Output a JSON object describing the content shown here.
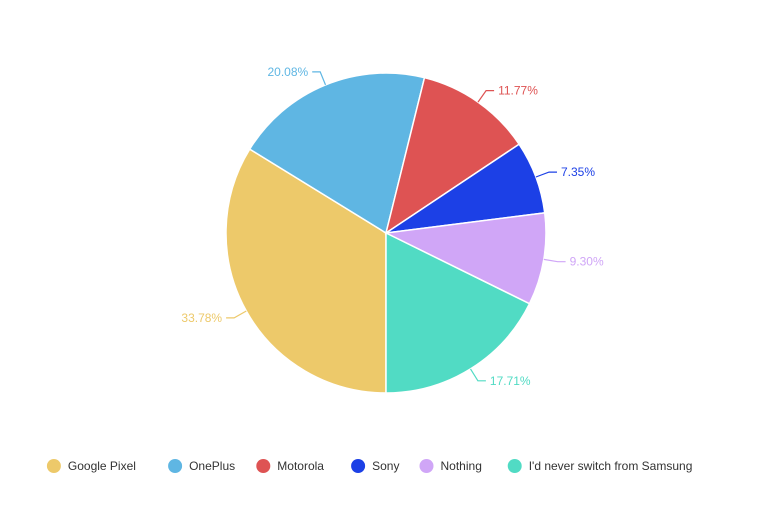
{
  "chart_data": {
    "type": "pie",
    "slices": [
      {
        "label": "Google Pixel",
        "value": 33.78,
        "value_label": "33.78%",
        "color": "#EDC96A"
      },
      {
        "label": "OnePlus",
        "value": 20.08,
        "value_label": "20.08%",
        "color": "#5FB6E3"
      },
      {
        "label": "Motorola",
        "value": 11.77,
        "value_label": "11.77%",
        "color": "#DE5353"
      },
      {
        "label": "Sony",
        "value": 7.35,
        "value_label": "7.35%",
        "color": "#1C40E6"
      },
      {
        "label": "Nothing",
        "value": 9.3,
        "value_label": "9.30%",
        "color": "#D0A6F7"
      },
      {
        "label": "I'd never switch from Samsung",
        "value": 17.71,
        "value_label": "17.71%",
        "color": "#51DBC4"
      }
    ],
    "legend_position": "bottom"
  }
}
